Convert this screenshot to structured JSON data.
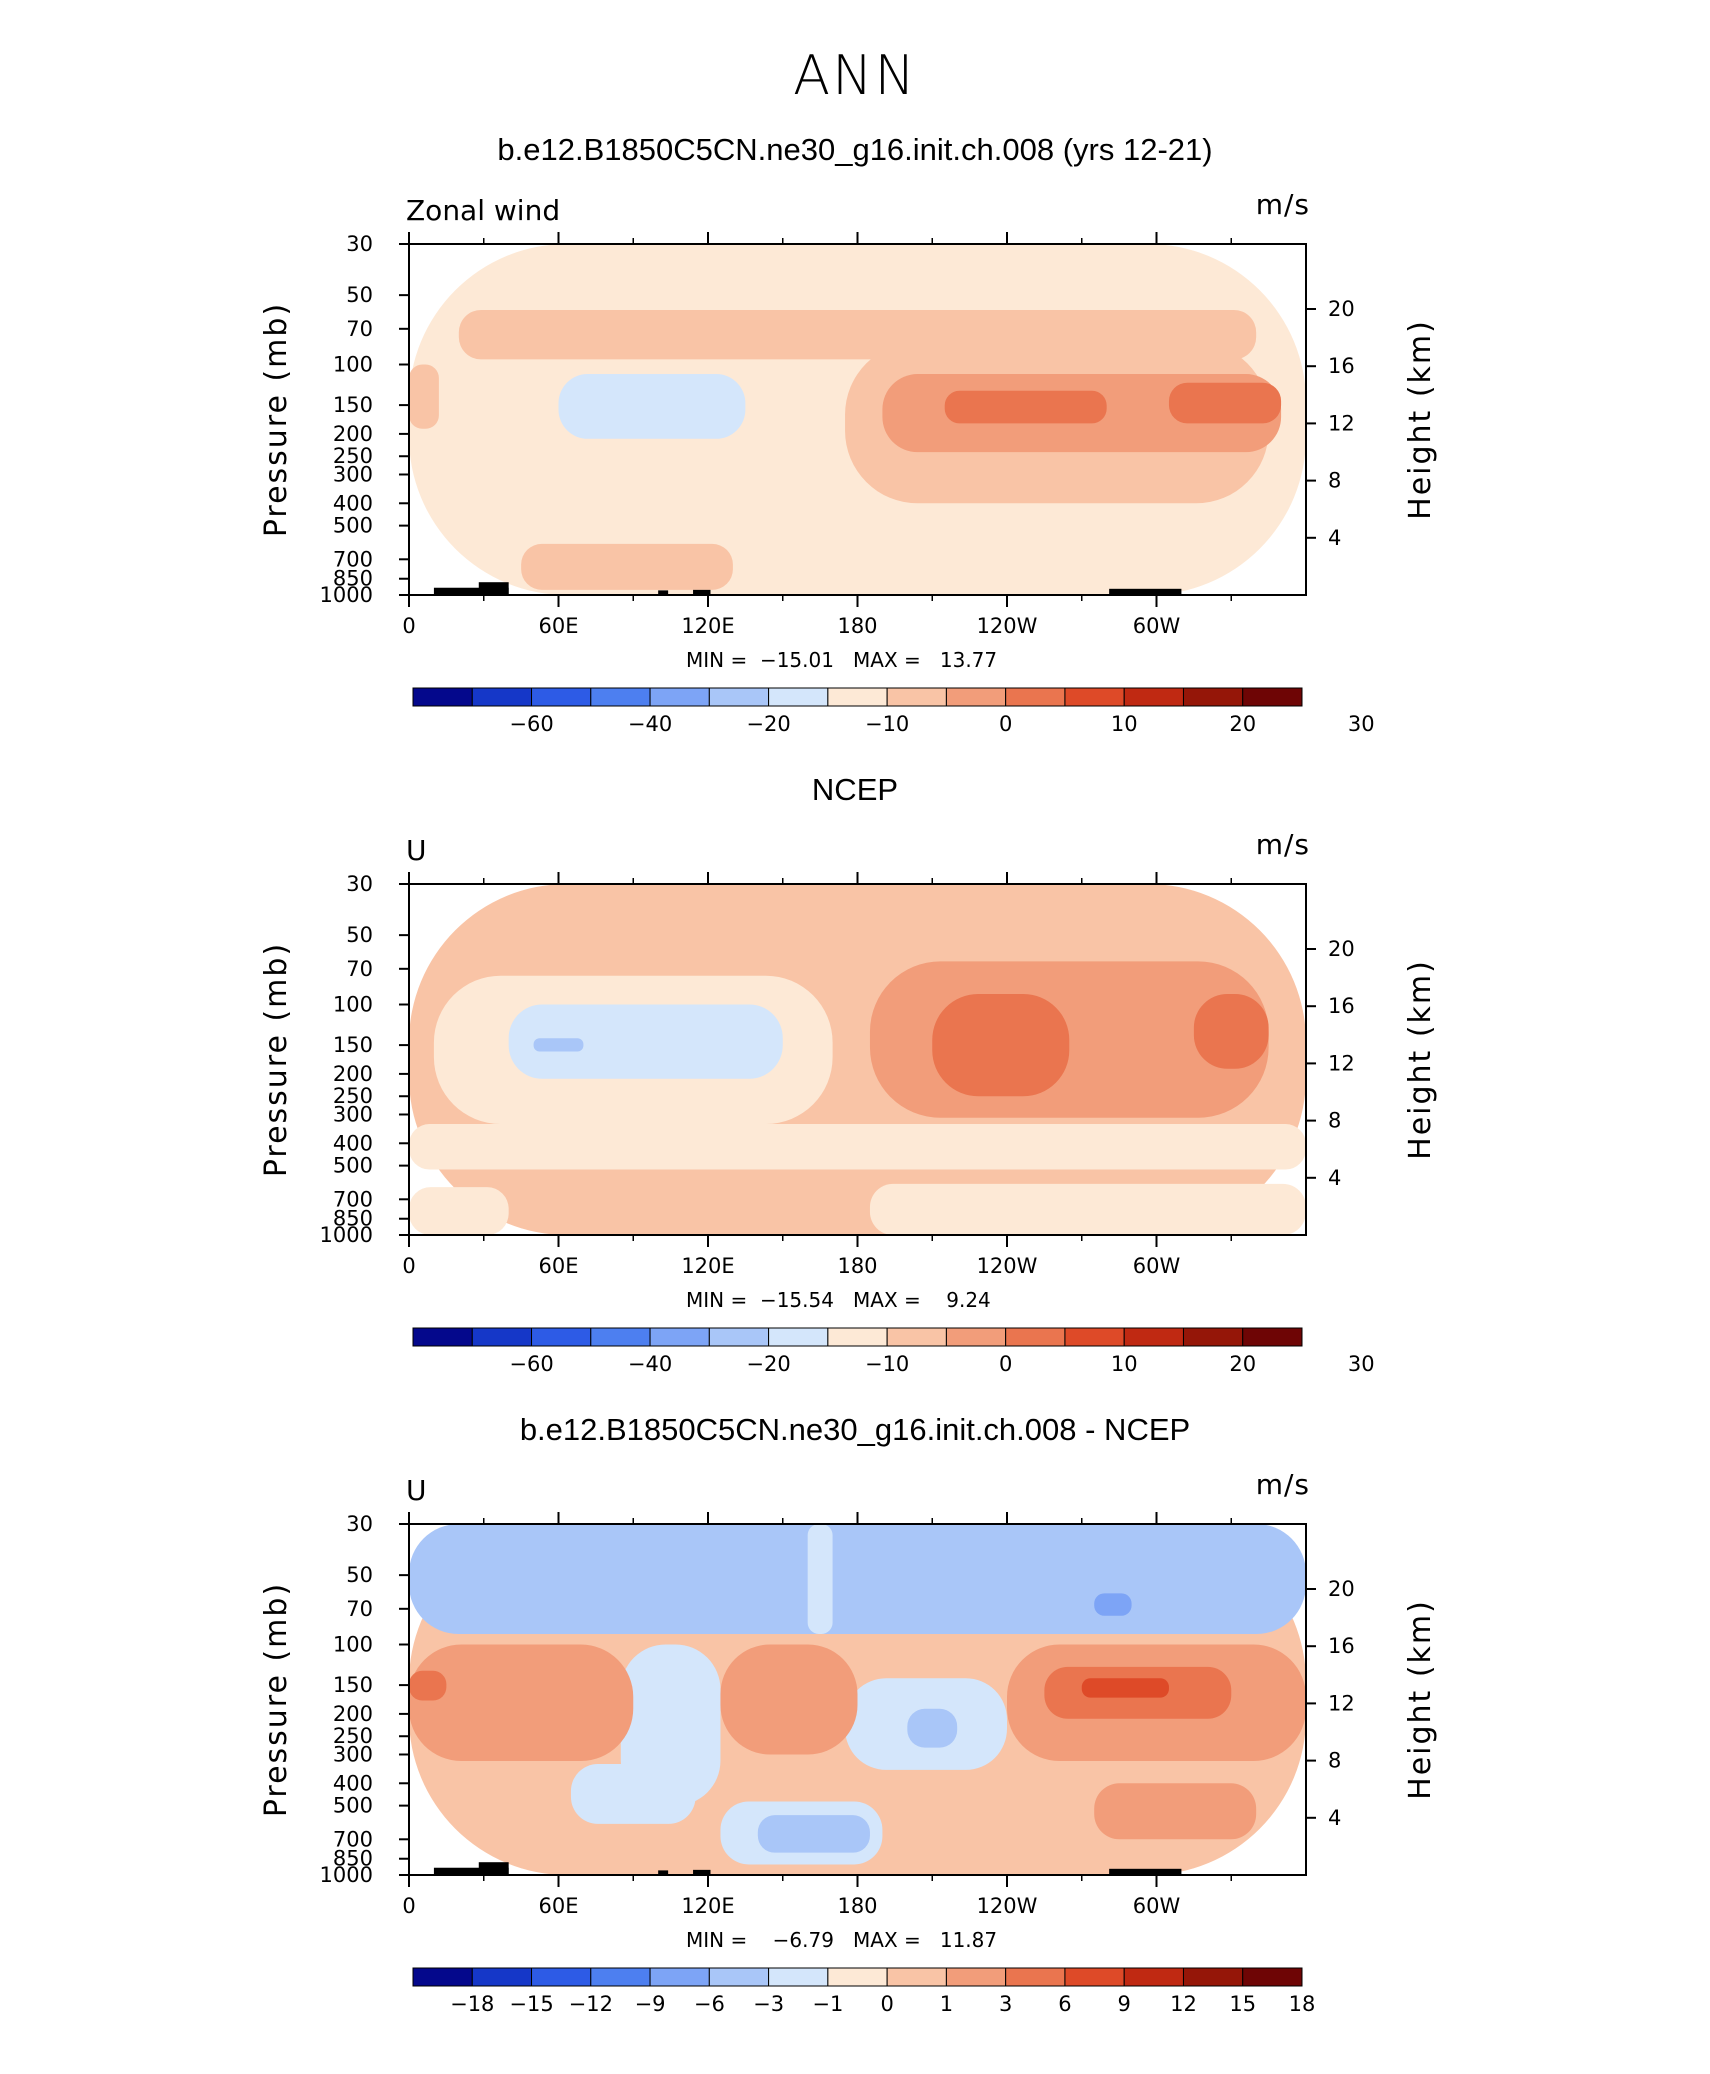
{
  "title": "ANN",
  "chart_data": [
    {
      "type": "heatmap",
      "title": "b.e12.B1850C5CN.ne30_g16.init.ch.008 (yrs 12-21)",
      "subtitle_left": "Zonal wind",
      "units": "m/s",
      "xlabel": "",
      "ylabel": "Pressure (mb)",
      "y2label": "Height (km)",
      "x_ticks": [
        "0",
        "60E",
        "120E",
        "180",
        "120W",
        "60W"
      ],
      "y_ticks": [
        "30",
        "50",
        "70",
        "100",
        "150",
        "200",
        "250",
        "300",
        "400",
        "500",
        "700",
        "850",
        "1000"
      ],
      "y2_ticks": [
        "20",
        "16",
        "12",
        "8",
        "4"
      ],
      "min_label": "MIN =  −15.01",
      "max_label": "MAX =   13.77",
      "min": -15.01,
      "max": 13.77,
      "colorbar_labels": [
        "−60",
        "−40",
        "−20",
        "−10",
        "0",
        "10",
        "20",
        "30"
      ],
      "colorbar_colors": [
        "#04088c",
        "#1537c8",
        "#2d5be6",
        "#4d7ff0",
        "#7da4f6",
        "#a9c6f8",
        "#d4e6fb",
        "#fde9d6",
        "#f9c4a6",
        "#f29d7a",
        "#ea754f",
        "#de4a28",
        "#c02912",
        "#951608",
        "#6e0505"
      ],
      "regions": [
        {
          "lon": [
            0,
            360
          ],
          "p": [
            30,
            1000
          ],
          "level": 0
        },
        {
          "lon": [
            20,
            340
          ],
          "p": [
            58,
            95
          ],
          "level": 1
        },
        {
          "lon": [
            0,
            12
          ],
          "p": [
            100,
            190
          ],
          "level": 1
        },
        {
          "lon": [
            185,
            340
          ],
          "p": [
            90,
            260
          ],
          "level": 1
        },
        {
          "lon": [
            175,
            345
          ],
          "p": [
            80,
            400
          ],
          "level": 1
        },
        {
          "lon": [
            45,
            130
          ],
          "p": [
            600,
            950
          ],
          "level": 1
        },
        {
          "lon": [
            190,
            350
          ],
          "p": [
            110,
            240
          ],
          "level": 2
        },
        {
          "lon": [
            215,
            280
          ],
          "p": [
            130,
            180
          ],
          "level": 3
        },
        {
          "lon": [
            305,
            350
          ],
          "p": [
            120,
            180
          ],
          "level": 3
        },
        {
          "lon": [
            60,
            135
          ],
          "p": [
            110,
            210
          ],
          "level": -1
        }
      ]
    },
    {
      "type": "heatmap",
      "title": "NCEP",
      "subtitle_left": "U",
      "units": "m/s",
      "xlabel": "",
      "ylabel": "Pressure (mb)",
      "y2label": "Height (km)",
      "x_ticks": [
        "0",
        "60E",
        "120E",
        "180",
        "120W",
        "60W"
      ],
      "y_ticks": [
        "30",
        "50",
        "70",
        "100",
        "150",
        "200",
        "250",
        "300",
        "400",
        "500",
        "700",
        "850",
        "1000"
      ],
      "y2_ticks": [
        "20",
        "16",
        "12",
        "8",
        "4"
      ],
      "min_label": "MIN =  −15.54",
      "max_label": "MAX =    9.24",
      "min": -15.54,
      "max": 9.24,
      "colorbar_labels": [
        "−60",
        "−40",
        "−20",
        "−10",
        "0",
        "10",
        "20",
        "30"
      ],
      "colorbar_colors": [
        "#04088c",
        "#1537c8",
        "#2d5be6",
        "#4d7ff0",
        "#7da4f6",
        "#a9c6f8",
        "#d4e6fb",
        "#fde9d6",
        "#f9c4a6",
        "#f29d7a",
        "#ea754f",
        "#de4a28",
        "#c02912",
        "#951608",
        "#6e0505"
      ],
      "regions": [
        {
          "lon": [
            0,
            360
          ],
          "p": [
            30,
            1000
          ],
          "level": 1
        },
        {
          "lon": [
            10,
            170
          ],
          "p": [
            75,
            330
          ],
          "level": 0
        },
        {
          "lon": [
            0,
            360
          ],
          "p": [
            330,
            520
          ],
          "level": 0
        },
        {
          "lon": [
            185,
            360
          ],
          "p": [
            600,
            1000
          ],
          "level": 0
        },
        {
          "lon": [
            0,
            40
          ],
          "p": [
            620,
            1000
          ],
          "level": 0
        },
        {
          "lon": [
            185,
            345
          ],
          "p": [
            65,
            310
          ],
          "level": 2
        },
        {
          "lon": [
            210,
            265
          ],
          "p": [
            90,
            250
          ],
          "level": 3
        },
        {
          "lon": [
            315,
            345
          ],
          "p": [
            90,
            190
          ],
          "level": 3
        },
        {
          "lon": [
            40,
            150
          ],
          "p": [
            100,
            210
          ],
          "level": -1
        },
        {
          "lon": [
            50,
            70
          ],
          "p": [
            140,
            160
          ],
          "level": -2
        }
      ]
    },
    {
      "type": "heatmap",
      "title": "b.e12.B1850C5CN.ne30_g16.init.ch.008 - NCEP",
      "subtitle_left": "U",
      "units": "m/s",
      "xlabel": "",
      "ylabel": "Pressure (mb)",
      "y2label": "Height (km)",
      "x_ticks": [
        "0",
        "60E",
        "120E",
        "180",
        "120W",
        "60W"
      ],
      "y_ticks": [
        "30",
        "50",
        "70",
        "100",
        "150",
        "200",
        "250",
        "300",
        "400",
        "500",
        "700",
        "850",
        "1000"
      ],
      "y2_ticks": [
        "20",
        "16",
        "12",
        "8",
        "4"
      ],
      "min_label": "MIN =    −6.79",
      "max_label": "MAX =   11.87",
      "min": -6.79,
      "max": 11.87,
      "colorbar_labels": [
        "−18",
        "−15",
        "−12",
        "−9",
        "−6",
        "−3",
        "−1",
        "0",
        "1",
        "3",
        "6",
        "9",
        "12",
        "15",
        "18"
      ],
      "colorbar_colors": [
        "#04088c",
        "#1537c8",
        "#2d5be6",
        "#4d7ff0",
        "#7da4f6",
        "#a9c6f8",
        "#d4e6fb",
        "#fde9d6",
        "#f9c4a6",
        "#f29d7a",
        "#ea754f",
        "#de4a28",
        "#c02912",
        "#951608",
        "#6e0505"
      ],
      "regions": [
        {
          "lon": [
            0,
            360
          ],
          "p": [
            30,
            1000
          ],
          "level": 1
        },
        {
          "lon": [
            0,
            360
          ],
          "p": [
            30,
            90
          ],
          "level": -2
        },
        {
          "lon": [
            160,
            170
          ],
          "p": [
            30,
            90
          ],
          "level": -1
        },
        {
          "lon": [
            85,
            125
          ],
          "p": [
            100,
            500
          ],
          "level": -1
        },
        {
          "lon": [
            65,
            115
          ],
          "p": [
            330,
            600
          ],
          "level": -1
        },
        {
          "lon": [
            125,
            190
          ],
          "p": [
            480,
            900
          ],
          "level": -1
        },
        {
          "lon": [
            140,
            185
          ],
          "p": [
            550,
            800
          ],
          "level": -2
        },
        {
          "lon": [
            175,
            240
          ],
          "p": [
            140,
            350
          ],
          "level": -1
        },
        {
          "lon": [
            200,
            220
          ],
          "p": [
            190,
            280
          ],
          "level": -2
        },
        {
          "lon": [
            0,
            90
          ],
          "p": [
            100,
            320
          ],
          "level": 2
        },
        {
          "lon": [
            125,
            180
          ],
          "p": [
            100,
            300
          ],
          "level": 2
        },
        {
          "lon": [
            240,
            360
          ],
          "p": [
            100,
            320
          ],
          "level": 2
        },
        {
          "lon": [
            255,
            330
          ],
          "p": [
            125,
            210
          ],
          "level": 3
        },
        {
          "lon": [
            270,
            305
          ],
          "p": [
            140,
            170
          ],
          "level": 4
        },
        {
          "lon": [
            0,
            15
          ],
          "p": [
            130,
            175
          ],
          "level": 3
        },
        {
          "lon": [
            275,
            340
          ],
          "p": [
            400,
            700
          ],
          "level": 2
        },
        {
          "lon": [
            275,
            290
          ],
          "p": [
            60,
            75
          ],
          "level": -3
        }
      ]
    }
  ]
}
